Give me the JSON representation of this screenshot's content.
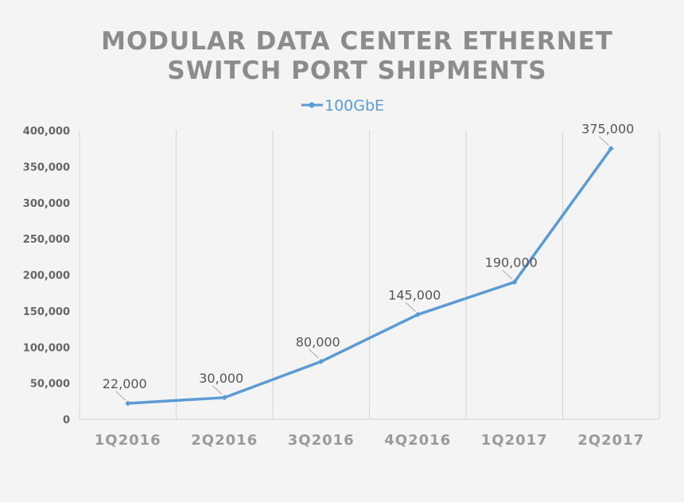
{
  "chart_data": {
    "type": "line",
    "title_lines": [
      "MODULAR DATA CENTER ETHERNET",
      "SWITCH PORT SHIPMENTS"
    ],
    "categories": [
      "1Q2016",
      "2Q2016",
      "3Q2016",
      "4Q2016",
      "1Q2017",
      "2Q2017"
    ],
    "series": [
      {
        "name": "100GbE",
        "values": [
          22000,
          30000,
          80000,
          145000,
          190000,
          375000
        ],
        "color": "#5b9bd5"
      }
    ],
    "data_labels": [
      "22,000",
      "30,000",
      "80,000",
      "145,000",
      "190,000",
      "375,000"
    ],
    "ylim": [
      0,
      400000
    ],
    "yticks": [
      0,
      50000,
      100000,
      150000,
      200000,
      250000,
      300000,
      350000,
      400000
    ],
    "ytick_labels": [
      "0",
      "50,000",
      "100,000",
      "150,000",
      "200,000",
      "250,000",
      "300,000",
      "350,000",
      "400,000"
    ],
    "grid": "vertical",
    "legend_position": "top-center"
  }
}
